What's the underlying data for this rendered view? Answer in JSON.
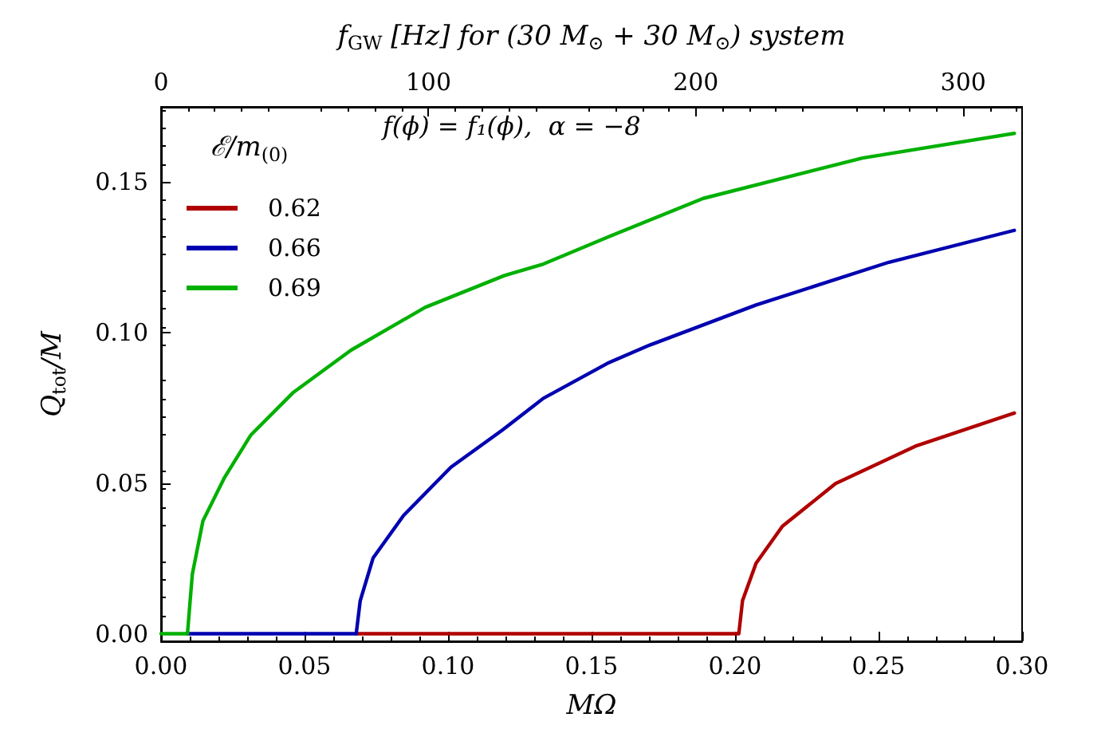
{
  "chart_data": {
    "type": "line",
    "xlabel": "MΩ",
    "ylabel": "Q$_{tot}$/M",
    "x2label": "f$_{GW}$ [Hz] for (30 M$_{⊙}$ + 30 M$_{⊙}$) system",
    "legend_title": "ℰ/m$_{(0)}$",
    "annotations": [
      "f(ϕ) = f₁(ϕ),  α = −8"
    ],
    "series": [
      {
        "name": "0.62",
        "color": "#b00000",
        "x": [
          0.068,
          0.1,
          0.15,
          0.2013,
          0.2026,
          0.2073,
          0.2165,
          0.235,
          0.2628,
          0.2973
        ],
        "values": [
          0,
          0,
          0,
          0,
          0.011,
          0.0234,
          0.0357,
          0.0499,
          0.0623,
          0.0733
        ]
      },
      {
        "name": "0.66",
        "color": "#0000b0",
        "x": [
          0.0092,
          0.04,
          0.068,
          0.0694,
          0.0739,
          0.0845,
          0.101,
          0.119,
          0.1332,
          0.1555,
          0.1703,
          0.2073,
          0.2536,
          0.2973
        ],
        "values": [
          0,
          0,
          0,
          0.011,
          0.0252,
          0.0393,
          0.0553,
          0.0677,
          0.0782,
          0.0898,
          0.0959,
          0.1092,
          0.1234,
          0.134
        ]
      },
      {
        "name": "0.69",
        "color": "#00b000",
        "x": [
          0,
          0.0092,
          0.0109,
          0.0146,
          0.022,
          0.0312,
          0.0459,
          0.0662,
          0.092,
          0.1197,
          0.1332,
          0.1555,
          0.1889,
          0.2444,
          0.2973
        ],
        "values": [
          0,
          0,
          0.0198,
          0.0375,
          0.0517,
          0.0659,
          0.08,
          0.0942,
          0.1084,
          0.119,
          0.1228,
          0.1317,
          0.1446,
          0.158,
          0.1662
        ]
      }
    ],
    "xlim": [
      0,
      0.3
    ],
    "xticks": [
      {
        "value": 0,
        "label": "0.00"
      },
      0.05,
      {
        "value": 0.1,
        "label": "0.10"
      },
      0.15,
      {
        "value": 0.2,
        "label": "0.20"
      },
      0.25,
      {
        "value": 0.3,
        "label": "0.30"
      }
    ],
    "ylim": [
      -0.0025,
      0.175
    ],
    "yticks": [
      {
        "value": 0,
        "label": "0.00"
      },
      0.05,
      {
        "value": 0.1,
        "label": "0.10"
      },
      0.15
    ],
    "x2lim": [
      0,
      322
    ],
    "x2ticks": [
      0,
      100,
      200,
      300
    ],
    "legend": "top left",
    "grid": false,
    "marker": "none",
    "line_style": "solid"
  }
}
